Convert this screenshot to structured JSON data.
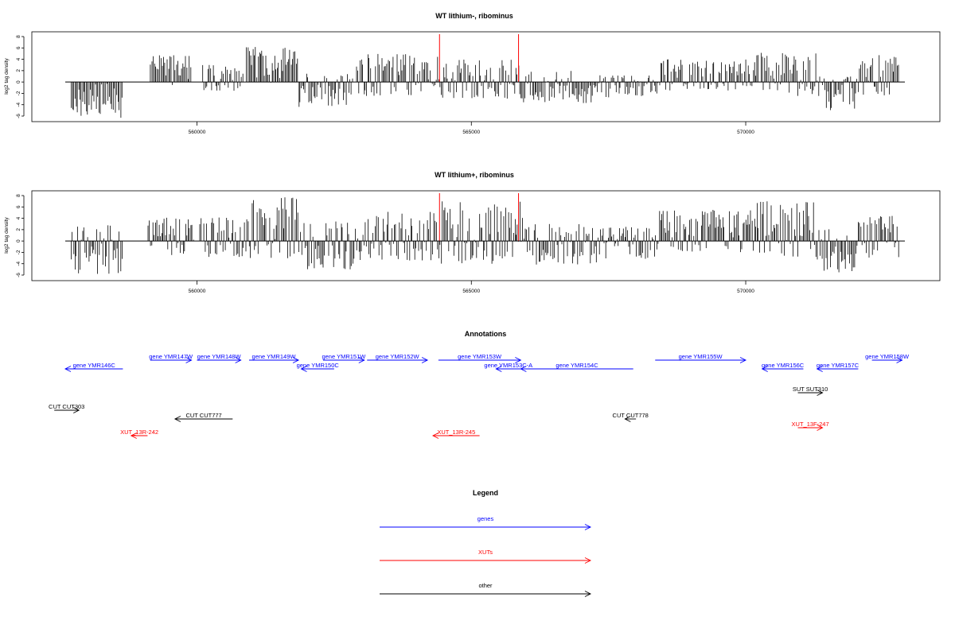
{
  "chart_data": [
    {
      "type": "bar",
      "title": "WT lithium-, ribominus",
      "ylabel": "log2 tag density",
      "xlabel": "",
      "xlim": [
        557600,
        572900
      ],
      "ylim": [
        -6,
        8
      ],
      "x_ticks": [
        560000,
        565000,
        570000
      ],
      "x_tick_labels": [
        "560000",
        "565000",
        "570000"
      ],
      "y_ticks": [
        -6,
        -4,
        -2,
        0,
        2,
        4,
        6,
        8
      ],
      "grid": false,
      "highlight_positions": [
        564420,
        565860
      ],
      "highlight_color": "#ff0000",
      "regions": [
        {
          "start": 557700,
          "end": 558650,
          "min": -6.3,
          "max": 0
        },
        {
          "start": 559150,
          "end": 559900,
          "min": -1.5,
          "max": 4.8
        },
        {
          "start": 560100,
          "end": 560850,
          "min": -1.8,
          "max": 3.2
        },
        {
          "start": 560900,
          "end": 561850,
          "min": -0.8,
          "max": 6.2
        },
        {
          "start": 561850,
          "end": 562850,
          "min": -4.5,
          "max": 1.5
        },
        {
          "start": 562900,
          "end": 564400,
          "min": -2.5,
          "max": 5.0
        },
        {
          "start": 564400,
          "end": 565900,
          "min": -3.0,
          "max": 4.0
        },
        {
          "start": 565900,
          "end": 567200,
          "min": -3.8,
          "max": 2.0
        },
        {
          "start": 567200,
          "end": 568400,
          "min": -2.8,
          "max": 1.2
        },
        {
          "start": 568400,
          "end": 570200,
          "min": -1.5,
          "max": 4.0
        },
        {
          "start": 570200,
          "end": 571300,
          "min": -2.5,
          "max": 5.2
        },
        {
          "start": 571300,
          "end": 572000,
          "min": -5.2,
          "max": 1.0
        },
        {
          "start": 572000,
          "end": 572800,
          "min": -2.5,
          "max": 5.0
        }
      ]
    },
    {
      "type": "bar",
      "title": "WT lithium+, ribominus",
      "ylabel": "log2 tag density",
      "xlabel": "",
      "xlim": [
        557600,
        572900
      ],
      "ylim": [
        -6,
        8
      ],
      "x_ticks": [
        560000,
        565000,
        570000
      ],
      "x_tick_labels": [
        "560000",
        "565000",
        "570000"
      ],
      "y_ticks": [
        -6,
        -4,
        -2,
        0,
        2,
        4,
        6,
        8
      ],
      "grid": false,
      "highlight_positions": [
        564420,
        565860
      ],
      "highlight_color": "#ff0000",
      "regions": [
        {
          "start": 557700,
          "end": 558650,
          "min": -5.8,
          "max": 3.0
        },
        {
          "start": 559100,
          "end": 559950,
          "min": -2.5,
          "max": 4.5
        },
        {
          "start": 560050,
          "end": 560950,
          "min": -2.8,
          "max": 4.2
        },
        {
          "start": 560950,
          "end": 561900,
          "min": -3.5,
          "max": 7.8
        },
        {
          "start": 561900,
          "end": 562900,
          "min": -5.0,
          "max": 3.5
        },
        {
          "start": 562900,
          "end": 564400,
          "min": -3.5,
          "max": 5.8
        },
        {
          "start": 564400,
          "end": 565950,
          "min": -4.0,
          "max": 7.2
        },
        {
          "start": 565950,
          "end": 567300,
          "min": -4.2,
          "max": 3.0
        },
        {
          "start": 567300,
          "end": 568400,
          "min": -3.2,
          "max": 2.5
        },
        {
          "start": 568400,
          "end": 570200,
          "min": -2.0,
          "max": 5.5
        },
        {
          "start": 570200,
          "end": 571300,
          "min": -3.0,
          "max": 7.0
        },
        {
          "start": 571300,
          "end": 572000,
          "min": -5.8,
          "max": 2.2
        },
        {
          "start": 572000,
          "end": 572800,
          "min": -3.0,
          "max": 4.5
        }
      ]
    }
  ],
  "annotations": {
    "title": "Annotations",
    "items": [
      {
        "label": "gene YMR146C",
        "start": 557600,
        "end": 558650,
        "strand": "-",
        "row": 1,
        "color": "#0000ff"
      },
      {
        "label": "gene YMR147W",
        "start": 559150,
        "end": 559900,
        "strand": "+",
        "row": 0,
        "color": "#0000ff"
      },
      {
        "label": "gene YMR148W",
        "start": 560000,
        "end": 560800,
        "strand": "+",
        "row": 0,
        "color": "#0000ff"
      },
      {
        "label": "gene YMR149W",
        "start": 560950,
        "end": 561850,
        "strand": "+",
        "row": 0,
        "color": "#0000ff"
      },
      {
        "label": "gene YMR150C",
        "start": 561900,
        "end": 562500,
        "strand": "-",
        "row": 1,
        "color": "#0000ff"
      },
      {
        "label": "gene YMR151W",
        "start": 562300,
        "end": 563050,
        "strand": "+",
        "row": 0,
        "color": "#0000ff"
      },
      {
        "label": "gene YMR152W",
        "start": 563100,
        "end": 564200,
        "strand": "+",
        "row": 0,
        "color": "#0000ff"
      },
      {
        "label": "gene YMR153W",
        "start": 564400,
        "end": 565900,
        "strand": "+",
        "row": 0,
        "color": "#0000ff"
      },
      {
        "label": "gene YMR153C-A",
        "start": 565450,
        "end": 565900,
        "strand": "-",
        "row": 1,
        "color": "#0000ff"
      },
      {
        "label": "gene YMR154C",
        "start": 565900,
        "end": 567950,
        "strand": "-",
        "row": 1,
        "color": "#0000ff"
      },
      {
        "label": "gene YMR155W",
        "start": 568350,
        "end": 570000,
        "strand": "+",
        "row": 0,
        "color": "#0000ff"
      },
      {
        "label": "gene YMR156C",
        "start": 570300,
        "end": 571050,
        "strand": "-",
        "row": 1,
        "color": "#0000ff"
      },
      {
        "label": "gene YMR157C",
        "start": 571300,
        "end": 572050,
        "strand": "-",
        "row": 1,
        "color": "#0000ff"
      },
      {
        "label": "gene YMR158W",
        "start": 572300,
        "end": 572850,
        "strand": "+",
        "row": 0,
        "color": "#0000ff"
      },
      {
        "label": "SUT SUT310",
        "start": 570950,
        "end": 571400,
        "strand": "+",
        "row": 3,
        "color": "#000000"
      },
      {
        "label": "CUT CUT303",
        "start": 557400,
        "end": 557850,
        "strand": "+",
        "row": 5,
        "color": "#000000"
      },
      {
        "label": "CUT CUT777",
        "start": 559600,
        "end": 560650,
        "strand": "-",
        "row": 6,
        "color": "#000000"
      },
      {
        "label": "CUT CUT778",
        "start": 567800,
        "end": 568000,
        "strand": "-",
        "row": 6,
        "color": "#000000"
      },
      {
        "label": "XUT_13R-242",
        "start": 558800,
        "end": 559100,
        "strand": "-",
        "row": 8,
        "color": "#ff0000"
      },
      {
        "label": "XUT_13R-245",
        "start": 564300,
        "end": 565150,
        "strand": "-",
        "row": 8,
        "color": "#ff0000"
      },
      {
        "label": "XUT_13F-247",
        "start": 570950,
        "end": 571400,
        "strand": "+",
        "row": 7,
        "color": "#ff0000"
      }
    ]
  },
  "legend": {
    "title": "Legend",
    "entries": [
      {
        "label": "genes",
        "color": "#0000ff"
      },
      {
        "label": "XUTs",
        "color": "#ff0000"
      },
      {
        "label": "other",
        "color": "#000000"
      }
    ]
  }
}
